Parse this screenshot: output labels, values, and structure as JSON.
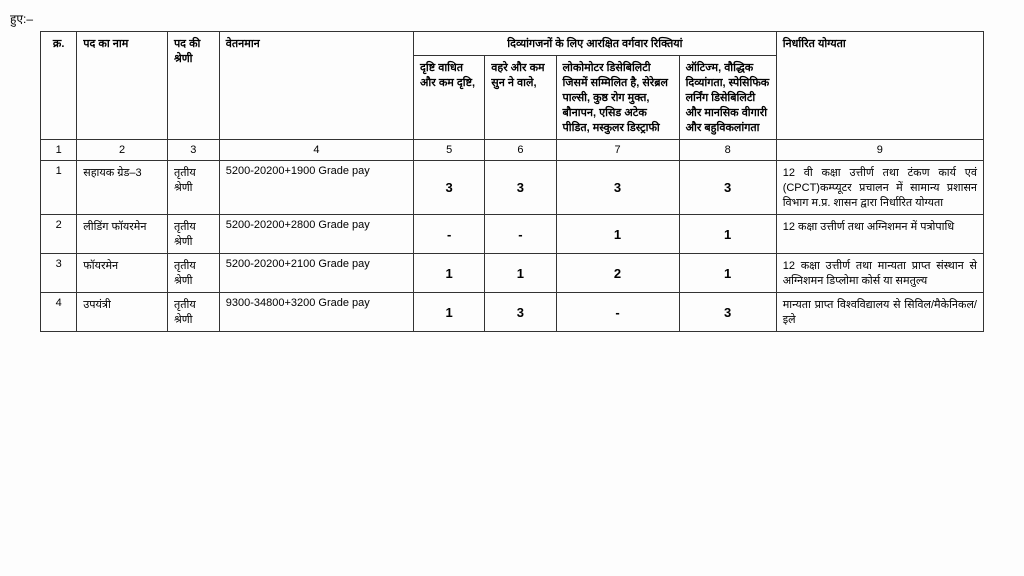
{
  "prefix": "हुए:–",
  "headers": {
    "sno": "क्र.",
    "postName": "पद का नाम",
    "postCat": "पद की श्रेणी",
    "payScale": "वेतनमान",
    "reservedGroup": "दिव्यांगजनों के लिए आरक्षित वर्गवार रिक्तियां",
    "qualification": "निर्धारित योग्यता",
    "sub1": "दृष्टि वाधित और कम दृष्टि,",
    "sub2": "वहरे और कम सुन ने वाले,",
    "sub3": "लोकोमोटर डिसेबिलिटी जिसमें सम्मिलित है, सेरेब्रल पाल्सी, कुष्ठ रोग मुक्त, बौनापन, एसिड अटेक पीडित, मस्कुलर डिस्ट्राफी",
    "sub4": "ऑटिज्म, वौद्धिक दिव्यांगता, स्पेसिफिक लर्निंग डिसेबिलिटी और मानसिक वीगारी और बहुविकलांगता"
  },
  "colnums": [
    "1",
    "2",
    "3",
    "4",
    "5",
    "6",
    "7",
    "8",
    "9"
  ],
  "rows": [
    {
      "sno": "1",
      "post": "सहायक ग्रेड–3",
      "cat": "तृतीय श्रेणी",
      "pay": "5200-20200+1900 Grade pay",
      "v1": "3",
      "v2": "3",
      "v3": "3",
      "v4": "3",
      "qual": "12 वी कक्षा उत्तीर्ण तथा टंकण कार्य एवं (CPCT)कम्प्यूटर प्रचालन में सामान्य प्रशासन विभाग म.प्र. शासन द्वारा निर्धारित योग्यता"
    },
    {
      "sno": "2",
      "post": "लीडिंग फॉयरमेन",
      "cat": "तृतीय श्रेणी",
      "pay": "5200-20200+2800 Grade pay",
      "v1": "-",
      "v2": "-",
      "v3": "1",
      "v4": "1",
      "qual": "12 कक्षा उत्तीर्ण तथा अग्निशमन में पत्रोपाधि"
    },
    {
      "sno": "3",
      "post": "फॉयरमेन",
      "cat": "तृतीय श्रेणी",
      "pay": "5200-20200+2100 Grade pay",
      "v1": "1",
      "v2": "1",
      "v3": "2",
      "v4": "1",
      "qual": "12 कक्षा उत्तीर्ण तथा मान्यता प्राप्त संस्थान से अग्निशमन डिप्लोमा कोर्स या समतुल्य"
    },
    {
      "sno": "4",
      "post": "उपयंत्री",
      "cat": "तृतीय श्रेणी",
      "pay": "9300-34800+3200 Grade pay",
      "v1": "1",
      "v2": "3",
      "v3": "-",
      "v4": "3",
      "qual": "मान्यता प्राप्त विश्वविद्यालय से सिविल/मैकेनिकल/इले"
    }
  ],
  "style": {
    "border_color": "#333333",
    "background": "#fdfdfd",
    "header_fontsize": 11,
    "cell_fontsize": 11,
    "num_fontsize": 13
  }
}
